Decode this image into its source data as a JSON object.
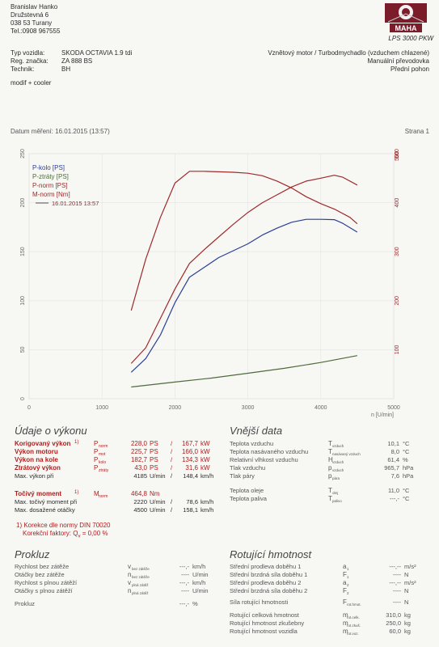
{
  "header": {
    "owner_lines": [
      "Branislav Hanko",
      "Družstevná 6",
      "038 53 Turany",
      "Tel.:0908 967555"
    ],
    "brand": "MAHA",
    "model": "LPS 3000 PKW"
  },
  "vehicle": {
    "labels": [
      "Typ vozidla:",
      "Reg. značka:",
      "Technik:"
    ],
    "values": [
      "SKODA OCTAVIA 1.9 tdi",
      "ZA 888 BS",
      "BH"
    ],
    "engine": "Vznětový motor / Turbodmychadlo (vzduchem chlazené)",
    "gearbox": "Manuální převodovka",
    "drive": "Přední pohon",
    "note": "modif + cooler"
  },
  "measurement": {
    "date_label": "Datum měření: 16.01.2015 (13:57)",
    "page_label": "Strana 1"
  },
  "chart_data": {
    "type": "line",
    "x_ticks": [
      "0",
      "1000",
      "2000",
      "3000",
      "4000",
      "5000"
    ],
    "x_unit": "n [U/min]",
    "xlim": [
      0,
      5000
    ],
    "y_left_ticks": [
      "0",
      "50",
      "100",
      "150",
      "200",
      "250"
    ],
    "ylim_left": [
      0,
      250
    ],
    "y_right_ticks": [
      "100",
      "200",
      "300",
      "400",
      "500"
    ],
    "ylim_right": [
      0,
      500
    ],
    "legend": [
      "P-kolo [PS]",
      "P-ztráty [PS]",
      "P-norm [PS]",
      "M-norm [Nm]",
      "16.01.2015 13:57"
    ],
    "series": [
      {
        "name": "P-norm [PS]",
        "color": "#9e2a2a",
        "axis": "left",
        "x": [
          1400,
          1600,
          1800,
          2000,
          2200,
          2400,
          2600,
          2800,
          3000,
          3200,
          3400,
          3600,
          3800,
          4000,
          4185,
          4300,
          4500
        ],
        "y": [
          36,
          52,
          82,
          112,
          138,
          152,
          165,
          178,
          190,
          200,
          208,
          216,
          222,
          225,
          228,
          226,
          218
        ]
      },
      {
        "name": "P-kolo [PS]",
        "color": "#2b3f96",
        "axis": "left",
        "x": [
          1400,
          1600,
          1800,
          2000,
          2200,
          2400,
          2600,
          2800,
          3000,
          3200,
          3400,
          3600,
          3800,
          4000,
          4185,
          4300,
          4500
        ],
        "y": [
          27,
          41,
          65,
          98,
          124,
          134,
          144,
          151,
          158,
          167,
          174,
          180,
          183,
          183,
          182.7,
          179,
          170
        ]
      },
      {
        "name": "P-ztráty [PS]",
        "color": "#4e6b3c",
        "axis": "left",
        "x": [
          1400,
          2000,
          2500,
          3000,
          3500,
          4000,
          4500
        ],
        "y": [
          12,
          17,
          21,
          26,
          31,
          37,
          44
        ]
      },
      {
        "name": "M-norm [Nm]",
        "color": "#9e2a2a",
        "axis": "right",
        "x": [
          1400,
          1600,
          1800,
          2000,
          2200,
          2400,
          2800,
          3000,
          3200,
          3400,
          3600,
          3800,
          4000,
          4200,
          4400,
          4500
        ],
        "y": [
          180,
          285,
          370,
          440,
          464,
          464,
          462,
          460,
          455,
          444,
          430,
          412,
          398,
          386,
          370,
          357
        ]
      }
    ]
  },
  "vykon": {
    "title": "Údaje o výkonu",
    "rows": [
      {
        "label": "Korigovaný výkon",
        "sup": "1)",
        "sym": "P",
        "sub": "norm",
        "v1": "228,0",
        "u1": "PS",
        "sep": "/",
        "v2": "167,7",
        "u2": "kW",
        "red": true
      },
      {
        "label": "Výkon motoru",
        "sup": "",
        "sym": "P",
        "sub": "mot",
        "v1": "225,7",
        "u1": "PS",
        "sep": "/",
        "v2": "166,0",
        "u2": "kW",
        "red": true
      },
      {
        "label": "Výkon na kole",
        "sup": "",
        "sym": "P",
        "sub": "kolo",
        "v1": "182,7",
        "u1": "PS",
        "sep": "/",
        "v2": "134,3",
        "u2": "kW",
        "red": true
      },
      {
        "label": "Ztrátový výkon",
        "sup": "",
        "sym": "P",
        "sub": "ztráty",
        "v1": "43,0",
        "u1": "PS",
        "sep": "/",
        "v2": "31,6",
        "u2": "kW",
        "red": true
      },
      {
        "label": "Max. výkon při",
        "sup": "",
        "sym": "",
        "sub": "",
        "v1": "4185",
        "u1": "U/min",
        "sep": "/",
        "v2": "148,4",
        "u2": "km/h",
        "red": false
      },
      {
        "label": "Točivý moment",
        "sup": "1)",
        "sym": "M",
        "sub": "norm",
        "v1": "464,8",
        "u1": "Nm",
        "sep": "",
        "v2": "",
        "u2": "",
        "red": true
      },
      {
        "label": "Max. točivý moment při",
        "sup": "",
        "sym": "",
        "sub": "",
        "v1": "2220",
        "u1": "U/min",
        "sep": "/",
        "v2": "78,6",
        "u2": "km/h",
        "red": false
      },
      {
        "label": "Max. dosažené otáčky",
        "sup": "",
        "sym": "",
        "sub": "",
        "v1": "4500",
        "u1": "U/min",
        "sep": "/",
        "v2": "158,1",
        "u2": "km/h",
        "red": false
      }
    ],
    "norm_note": "1) Korekce dle normy DIN 70020",
    "factor_label": "Korekční faktory: Q",
    "factor_sub": "v",
    "factor_value": "=   0,00 %"
  },
  "vnejsi": {
    "title": "Vnější data",
    "rows": [
      {
        "label": "Teplota vzduchu",
        "sym": "T",
        "sub": "vzduch",
        "val": "10,1",
        "unit": "°C"
      },
      {
        "label": "Teplota nasávaného vzduchu",
        "sym": "T",
        "sub": "nasávaný vzduch",
        "val": "8,0",
        "unit": "°C"
      },
      {
        "label": "Relativní vlhkost vzduchu",
        "sym": "H",
        "sub": "vzduch",
        "val": "61,4",
        "unit": "%"
      },
      {
        "label": "Tlak vzduchu",
        "sym": "p",
        "sub": "vzduch",
        "val": "965,7",
        "unit": "hPa"
      },
      {
        "label": "Tlak páry",
        "sym": "p",
        "sub": "pára",
        "val": "7,6",
        "unit": "hPa"
      },
      {
        "label": "Teplota oleje",
        "sym": "T",
        "sub": "olej",
        "val": "11,0",
        "unit": "°C"
      },
      {
        "label": "Teplota paliva",
        "sym": "T",
        "sub": "palivo",
        "val": "---,-",
        "unit": "°C"
      }
    ]
  },
  "prokluz": {
    "title": "Prokluz",
    "rows": [
      {
        "label": "Rychlost bez zátěže",
        "sym": "v",
        "sub": "bez zátěže",
        "val": "---,-",
        "unit": "km/h"
      },
      {
        "label": "Otáčky bez zátěže",
        "sym": "n",
        "sub": "bez zátěže",
        "val": "----",
        "unit": "U/min"
      },
      {
        "label": "Rychlost s plnou zátěží",
        "sym": "v",
        "sub": "plná zátěž",
        "val": "---,-",
        "unit": "km/h"
      },
      {
        "label": "Otáčky s plnou zátěží",
        "sym": "n",
        "sub": "plná zátěž",
        "val": "----",
        "unit": "U/min"
      },
      {
        "label": "Prokluz",
        "sym": "",
        "sub": "",
        "val": "---,-",
        "unit": "%"
      }
    ]
  },
  "rotujici": {
    "title": "Rotující hmotnost",
    "rows": [
      {
        "label": "Střední prodleva doběhu 1",
        "sym": "a",
        "sub": "1",
        "val": "---,--",
        "unit": "m/s²"
      },
      {
        "label": "Střední brzdná síla doběhu 1",
        "sym": "F",
        "sub": "1",
        "val": "----",
        "unit": "N"
      },
      {
        "label": "Střední prodleva doběhu 2",
        "sym": "a",
        "sub": "2",
        "val": "---,--",
        "unit": "m/s²"
      },
      {
        "label": "Střední brzdná síla doběhu 2",
        "sym": "F",
        "sub": "2",
        "val": "----",
        "unit": "N"
      },
      {
        "label": "Síla rotující hmotnosti",
        "sym": "F",
        "sub": "rot.hmot.",
        "val": "----",
        "unit": "N"
      },
      {
        "label": "Rotující celková hmotnost",
        "sym": "m",
        "sub": "rot.celk.",
        "val": "310,0",
        "unit": "kg"
      },
      {
        "label": "Rotující hmotnost zkušebny",
        "sym": "m",
        "sub": "rot.zkuš.",
        "val": "250,0",
        "unit": "kg"
      },
      {
        "label": "Rotující hmotnost vozidla",
        "sym": "m",
        "sub": "rot.voz.",
        "val": "60,0",
        "unit": "kg"
      }
    ]
  }
}
